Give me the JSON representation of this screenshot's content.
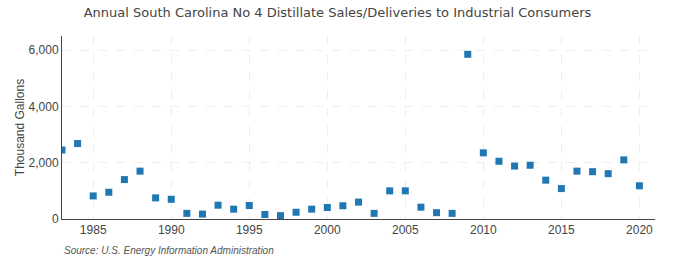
{
  "chart_data": {
    "type": "scatter",
    "title": "Annual South Carolina No 4 Distillate Sales/Deliveries to Industrial Consumers",
    "ylabel": "Thousand Gallons",
    "annotations": [
      "Source: U.S. Energy Information Administration"
    ],
    "marker": "square",
    "grid": true,
    "x": [
      1983,
      1984,
      1985,
      1986,
      1987,
      1988,
      1989,
      1990,
      1991,
      1992,
      1993,
      1994,
      1995,
      1996,
      1997,
      1998,
      1999,
      2000,
      2001,
      2002,
      2003,
      2004,
      2005,
      2006,
      2007,
      2008,
      2009,
      2010,
      2011,
      2012,
      2013,
      2014,
      2015,
      2016,
      2017,
      2018,
      2019,
      2020
    ],
    "values": [
      2450,
      2680,
      820,
      950,
      1400,
      1700,
      750,
      700,
      200,
      175,
      490,
      350,
      480,
      160,
      120,
      240,
      350,
      410,
      470,
      600,
      200,
      1000,
      1000,
      420,
      225,
      200,
      5850,
      2350,
      2050,
      1880,
      1910,
      1380,
      1080,
      1700,
      1680,
      1610,
      2100,
      1180
    ],
    "xlim": [
      1983,
      2021
    ],
    "ylim": [
      0,
      6500
    ],
    "xticks": [
      1985,
      1990,
      1995,
      2000,
      2005,
      2010,
      2015,
      2020
    ],
    "yticks": [
      0,
      {
        "value": 2000,
        "label": "2,000"
      },
      {
        "value": 4000,
        "label": "4,000"
      },
      {
        "value": 6000,
        "label": "6,000"
      }
    ]
  }
}
